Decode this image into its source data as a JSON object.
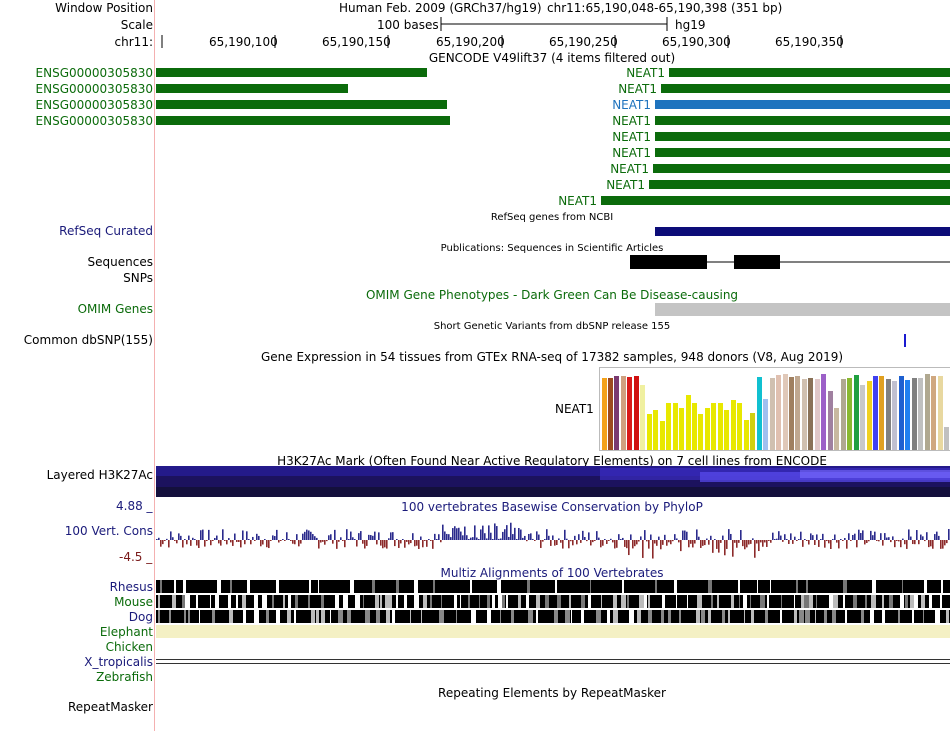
{
  "header": {
    "window_position_label": "Window Position",
    "scale_label": "Scale",
    "chrom_label": "chr11:",
    "assembly_text": "Human Feb. 2009 (GRCh37/hg19)",
    "position_text": "chr11:65,190,048-65,190,398 (351 bp)",
    "scale_bases": "100 bases",
    "scale_db": "hg19",
    "ticks": [
      "65,190,100",
      "65,190,150",
      "65,190,200",
      "65,190,250",
      "65,190,300",
      "65,190,350"
    ]
  },
  "gencode": {
    "title": "GENCODE V49lift37 (4 items filtered out)",
    "left_labels": [
      "ENSG00000305830",
      "ENSG00000305830",
      "ENSG00000305830",
      "ENSG00000305830"
    ],
    "right_labels": [
      "NEAT1",
      "NEAT1",
      "NEAT1",
      "NEAT1",
      "NEAT1",
      "NEAT1",
      "NEAT1",
      "NEAT1",
      "NEAT1"
    ],
    "highlight_color": "#1e73be",
    "gene_color": "#0b6b0b"
  },
  "refseq": {
    "caption": "RefSeq genes from NCBI",
    "label": "RefSeq Curated"
  },
  "publications": {
    "caption": "Publications: Sequences in Scientific Articles",
    "label1": "Sequences",
    "label2": "SNPs"
  },
  "omim": {
    "caption": "OMIM Gene Phenotypes - Dark Green Can Be Disease-causing",
    "label": "OMIM Genes"
  },
  "dbsnp": {
    "caption": "Short Genetic Variants from dbSNP release 155",
    "label": "Common dbSNP(155)"
  },
  "gtex": {
    "caption": "Gene Expression in 54 tissues from GTEx RNA-seq of 17382 samples, 948 donors (V8, Aug 2019)",
    "gene_label": "NEAT1",
    "bar_values": [
      0.95,
      0.95,
      0.98,
      0.97,
      0.96,
      0.97,
      0.86,
      0.48,
      0.53,
      0.38,
      0.62,
      0.62,
      0.55,
      0.72,
      0.62,
      0.48,
      0.55,
      0.62,
      0.62,
      0.52,
      0.66,
      0.62,
      0.4,
      0.49,
      0.96,
      0.67,
      0.95,
      0.99,
      1.0,
      0.96,
      0.97,
      0.94,
      0.95,
      0.93,
      1.0,
      0.77,
      0.55,
      0.93,
      0.95,
      0.99,
      0.86,
      0.91,
      0.98,
      0.97,
      0.94,
      0.91,
      0.97,
      0.92,
      0.95,
      0.95,
      1.0,
      0.98,
      0.97,
      0.3
    ],
    "bar_colors": [
      "#f4a21a",
      "#9c4a1e",
      "#7a3a70",
      "#d0a080",
      "#d91a1a",
      "#d01010",
      "#f0f0a0",
      "#e8e800",
      "#e8e800",
      "#e8e800",
      "#e8e800",
      "#e8e800",
      "#e8e800",
      "#e8e800",
      "#e8e800",
      "#e8e800",
      "#e8e800",
      "#e8e800",
      "#e8e800",
      "#e8e800",
      "#e8e800",
      "#e8e800",
      "#e8e800",
      "#d0d010",
      "#10c0d0",
      "#a0c0f0",
      "#d0c0b0",
      "#e0c0b0",
      "#e0c8b8",
      "#a08060",
      "#c0a890",
      "#d0c0b0",
      "#8a7258",
      "#e0c8c8",
      "#9c60c8",
      "#a080a0",
      "#c8b8a0",
      "#b0a890",
      "#8ab830",
      "#20a040",
      "#c8c8c8",
      "#f0d020",
      "#4040f0",
      "#e0a020",
      "#808080",
      "#c0c0d0",
      "#1e60d0",
      "#2080f0",
      "#808080",
      "#c0c0c0",
      "#b0a890",
      "#d0a880",
      "#e8d8a0",
      "#c0c0c0"
    ]
  },
  "h3k27ac": {
    "caption": "H3K27Ac Mark (Often Found Near Active Regulatory Elements) on 7 cell lines from ENCODE",
    "label": "Layered H3K27Ac"
  },
  "conservation": {
    "caption": "100 vertebrates Basewise Conservation by PhyloP",
    "label": "100 Vert. Cons",
    "max_label": "4.88 _",
    "min_label": "-4.5 _"
  },
  "multiz": {
    "caption": "Multiz Alignments of 100 Vertebrates",
    "species": [
      "Rhesus",
      "Mouse",
      "Dog",
      "Elephant",
      "Chicken",
      "X_tropicalis",
      "Zebrafish"
    ]
  },
  "repeatmasker": {
    "caption": "Repeating Elements by RepeatMasker",
    "label": "RepeatMasker"
  }
}
